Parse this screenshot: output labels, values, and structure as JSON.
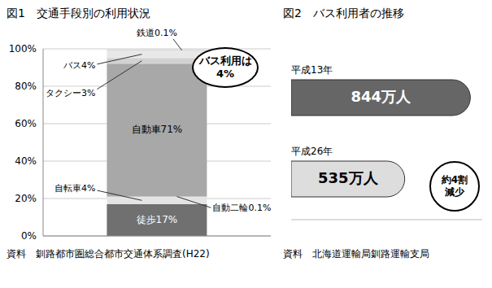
{
  "chart_data": [
    {
      "type": "bar",
      "stacked": true,
      "title": "図1　交通手段別の利用状況",
      "categories": [
        null
      ],
      "series": [
        {
          "name": "徒歩",
          "color": "#707070",
          "values": [
            17
          ],
          "value_labels": [
            "17%"
          ]
        },
        {
          "name": "自転車",
          "color": "#e4e4e4",
          "values": [
            4
          ],
          "value_labels": [
            "4%"
          ]
        },
        {
          "name": "自動二輪",
          "color": "#bcbcbc",
          "values": [
            0.1
          ],
          "value_labels": [
            "0.1%"
          ]
        },
        {
          "name": "自動車",
          "color": "#a8a8a8",
          "values": [
            71
          ],
          "value_labels": [
            "71%"
          ]
        },
        {
          "name": "タクシー",
          "color": "#d2d2d2",
          "values": [
            3
          ],
          "value_labels": [
            "3%"
          ]
        },
        {
          "name": "バス",
          "color": "#e8e8e8",
          "values": [
            4
          ],
          "value_labels": [
            "4%"
          ]
        },
        {
          "name": "鉄道",
          "color": "#606060",
          "values": [
            0.1
          ],
          "value_labels": [
            "0.1%"
          ]
        }
      ],
      "ylim": [
        0,
        100
      ],
      "yticks": [
        {
          "value": 0,
          "label": "0%"
        },
        {
          "value": 20,
          "label": "20%"
        },
        {
          "value": 40,
          "label": "40%"
        },
        {
          "value": 60,
          "label": "60%"
        },
        {
          "value": 80,
          "label": "80%"
        },
        {
          "value": 100,
          "label": "100%"
        }
      ],
      "grid": true,
      "data_labels": true,
      "tick_labels": "y",
      "annotation": [
        "バス利用は",
        "4%"
      ],
      "source_label": "資料",
      "source": "釧路都市圏総合都市交通体系調査(H22)"
    },
    {
      "type": "bar",
      "orientation": "horizontal",
      "title": "図2　バス利用者の推移",
      "categories": [
        "平成13年",
        "平成26年"
      ],
      "values": [
        844,
        535
      ],
      "value_labels": [
        "844万人",
        "535万人"
      ],
      "colors": [
        "#666666",
        "#dddddd"
      ],
      "xlim": [
        0,
        900
      ],
      "data_labels": true,
      "tick_labels": false,
      "annotation": [
        "約4割",
        "減少"
      ],
      "source_label": "資料",
      "source": "北海道運輸局釧路運輸支局"
    }
  ]
}
